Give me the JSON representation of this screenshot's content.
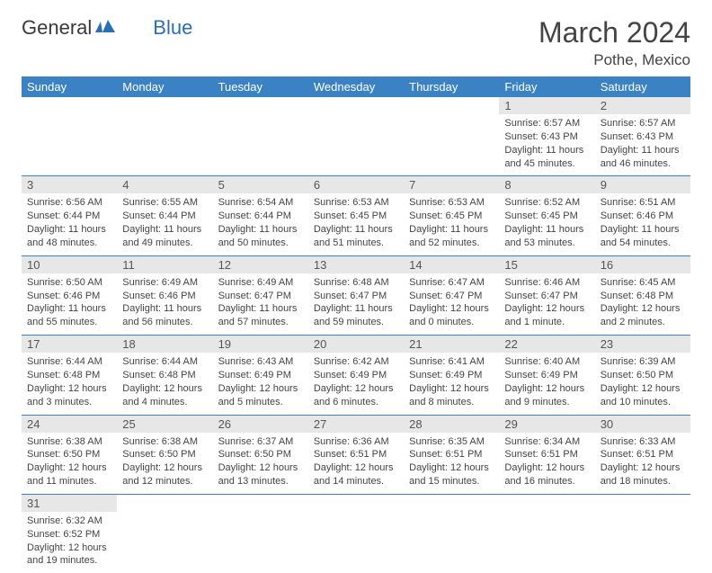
{
  "brand": {
    "part1": "General",
    "part2": "Blue"
  },
  "title": "March 2024",
  "location": "Pothe, Mexico",
  "colors": {
    "header_bg": "#3b82c4",
    "header_fg": "#ffffff",
    "daynum_bg": "#e7e7e7",
    "text": "#444444",
    "row_border": "#3b82c4"
  },
  "weekdays": [
    "Sunday",
    "Monday",
    "Tuesday",
    "Wednesday",
    "Thursday",
    "Friday",
    "Saturday"
  ],
  "weeks": [
    [
      {
        "empty": true
      },
      {
        "empty": true
      },
      {
        "empty": true
      },
      {
        "empty": true
      },
      {
        "empty": true
      },
      {
        "n": "1",
        "sunrise": "Sunrise: 6:57 AM",
        "sunset": "Sunset: 6:43 PM",
        "daylight": "Daylight: 11 hours and 45 minutes."
      },
      {
        "n": "2",
        "sunrise": "Sunrise: 6:57 AM",
        "sunset": "Sunset: 6:43 PM",
        "daylight": "Daylight: 11 hours and 46 minutes."
      }
    ],
    [
      {
        "n": "3",
        "sunrise": "Sunrise: 6:56 AM",
        "sunset": "Sunset: 6:44 PM",
        "daylight": "Daylight: 11 hours and 48 minutes."
      },
      {
        "n": "4",
        "sunrise": "Sunrise: 6:55 AM",
        "sunset": "Sunset: 6:44 PM",
        "daylight": "Daylight: 11 hours and 49 minutes."
      },
      {
        "n": "5",
        "sunrise": "Sunrise: 6:54 AM",
        "sunset": "Sunset: 6:44 PM",
        "daylight": "Daylight: 11 hours and 50 minutes."
      },
      {
        "n": "6",
        "sunrise": "Sunrise: 6:53 AM",
        "sunset": "Sunset: 6:45 PM",
        "daylight": "Daylight: 11 hours and 51 minutes."
      },
      {
        "n": "7",
        "sunrise": "Sunrise: 6:53 AM",
        "sunset": "Sunset: 6:45 PM",
        "daylight": "Daylight: 11 hours and 52 minutes."
      },
      {
        "n": "8",
        "sunrise": "Sunrise: 6:52 AM",
        "sunset": "Sunset: 6:45 PM",
        "daylight": "Daylight: 11 hours and 53 minutes."
      },
      {
        "n": "9",
        "sunrise": "Sunrise: 6:51 AM",
        "sunset": "Sunset: 6:46 PM",
        "daylight": "Daylight: 11 hours and 54 minutes."
      }
    ],
    [
      {
        "n": "10",
        "sunrise": "Sunrise: 6:50 AM",
        "sunset": "Sunset: 6:46 PM",
        "daylight": "Daylight: 11 hours and 55 minutes."
      },
      {
        "n": "11",
        "sunrise": "Sunrise: 6:49 AM",
        "sunset": "Sunset: 6:46 PM",
        "daylight": "Daylight: 11 hours and 56 minutes."
      },
      {
        "n": "12",
        "sunrise": "Sunrise: 6:49 AM",
        "sunset": "Sunset: 6:47 PM",
        "daylight": "Daylight: 11 hours and 57 minutes."
      },
      {
        "n": "13",
        "sunrise": "Sunrise: 6:48 AM",
        "sunset": "Sunset: 6:47 PM",
        "daylight": "Daylight: 11 hours and 59 minutes."
      },
      {
        "n": "14",
        "sunrise": "Sunrise: 6:47 AM",
        "sunset": "Sunset: 6:47 PM",
        "daylight": "Daylight: 12 hours and 0 minutes."
      },
      {
        "n": "15",
        "sunrise": "Sunrise: 6:46 AM",
        "sunset": "Sunset: 6:47 PM",
        "daylight": "Daylight: 12 hours and 1 minute."
      },
      {
        "n": "16",
        "sunrise": "Sunrise: 6:45 AM",
        "sunset": "Sunset: 6:48 PM",
        "daylight": "Daylight: 12 hours and 2 minutes."
      }
    ],
    [
      {
        "n": "17",
        "sunrise": "Sunrise: 6:44 AM",
        "sunset": "Sunset: 6:48 PM",
        "daylight": "Daylight: 12 hours and 3 minutes."
      },
      {
        "n": "18",
        "sunrise": "Sunrise: 6:44 AM",
        "sunset": "Sunset: 6:48 PM",
        "daylight": "Daylight: 12 hours and 4 minutes."
      },
      {
        "n": "19",
        "sunrise": "Sunrise: 6:43 AM",
        "sunset": "Sunset: 6:49 PM",
        "daylight": "Daylight: 12 hours and 5 minutes."
      },
      {
        "n": "20",
        "sunrise": "Sunrise: 6:42 AM",
        "sunset": "Sunset: 6:49 PM",
        "daylight": "Daylight: 12 hours and 6 minutes."
      },
      {
        "n": "21",
        "sunrise": "Sunrise: 6:41 AM",
        "sunset": "Sunset: 6:49 PM",
        "daylight": "Daylight: 12 hours and 8 minutes."
      },
      {
        "n": "22",
        "sunrise": "Sunrise: 6:40 AM",
        "sunset": "Sunset: 6:49 PM",
        "daylight": "Daylight: 12 hours and 9 minutes."
      },
      {
        "n": "23",
        "sunrise": "Sunrise: 6:39 AM",
        "sunset": "Sunset: 6:50 PM",
        "daylight": "Daylight: 12 hours and 10 minutes."
      }
    ],
    [
      {
        "n": "24",
        "sunrise": "Sunrise: 6:38 AM",
        "sunset": "Sunset: 6:50 PM",
        "daylight": "Daylight: 12 hours and 11 minutes."
      },
      {
        "n": "25",
        "sunrise": "Sunrise: 6:38 AM",
        "sunset": "Sunset: 6:50 PM",
        "daylight": "Daylight: 12 hours and 12 minutes."
      },
      {
        "n": "26",
        "sunrise": "Sunrise: 6:37 AM",
        "sunset": "Sunset: 6:50 PM",
        "daylight": "Daylight: 12 hours and 13 minutes."
      },
      {
        "n": "27",
        "sunrise": "Sunrise: 6:36 AM",
        "sunset": "Sunset: 6:51 PM",
        "daylight": "Daylight: 12 hours and 14 minutes."
      },
      {
        "n": "28",
        "sunrise": "Sunrise: 6:35 AM",
        "sunset": "Sunset: 6:51 PM",
        "daylight": "Daylight: 12 hours and 15 minutes."
      },
      {
        "n": "29",
        "sunrise": "Sunrise: 6:34 AM",
        "sunset": "Sunset: 6:51 PM",
        "daylight": "Daylight: 12 hours and 16 minutes."
      },
      {
        "n": "30",
        "sunrise": "Sunrise: 6:33 AM",
        "sunset": "Sunset: 6:51 PM",
        "daylight": "Daylight: 12 hours and 18 minutes."
      }
    ],
    [
      {
        "n": "31",
        "sunrise": "Sunrise: 6:32 AM",
        "sunset": "Sunset: 6:52 PM",
        "daylight": "Daylight: 12 hours and 19 minutes."
      },
      {
        "empty": true
      },
      {
        "empty": true
      },
      {
        "empty": true
      },
      {
        "empty": true
      },
      {
        "empty": true
      },
      {
        "empty": true
      }
    ]
  ]
}
